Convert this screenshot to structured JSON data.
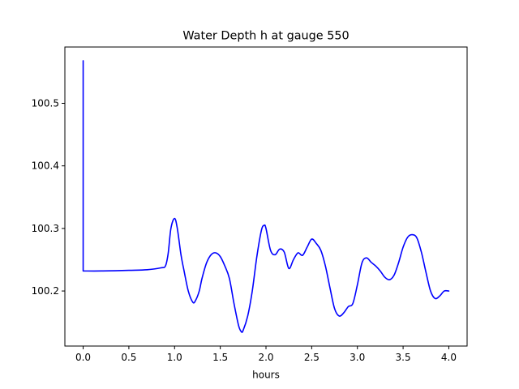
{
  "chart_data": {
    "type": "line",
    "title": "Water Depth h at gauge 550",
    "xlabel": "hours",
    "ylabel": "",
    "xlim": [
      -0.2,
      4.2
    ],
    "ylim": [
      100.112,
      100.59
    ],
    "xticks": [
      0.0,
      0.5,
      1.0,
      1.5,
      2.0,
      2.5,
      3.0,
      3.5,
      4.0
    ],
    "xtick_labels": [
      "0.0",
      "0.5",
      "1.0",
      "1.5",
      "2.0",
      "2.5",
      "3.0",
      "3.5",
      "4.0"
    ],
    "yticks": [
      100.2,
      100.3,
      100.4,
      100.5
    ],
    "ytick_labels": [
      "100.2",
      "100.3",
      "100.4",
      "100.5"
    ],
    "grid": false,
    "series": [
      {
        "color": "#0000ff",
        "x": [
          0.0,
          0.0,
          0.005,
          0.2,
          0.5,
          0.7,
          0.85,
          0.9,
          0.93,
          0.96,
          1.0,
          1.03,
          1.07,
          1.1,
          1.15,
          1.2,
          1.23,
          1.27,
          1.3,
          1.35,
          1.4,
          1.45,
          1.5,
          1.55,
          1.6,
          1.65,
          1.7,
          1.73,
          1.75,
          1.8,
          1.85,
          1.9,
          1.95,
          1.98,
          2.0,
          2.05,
          2.1,
          2.15,
          2.2,
          2.25,
          2.3,
          2.35,
          2.4,
          2.45,
          2.5,
          2.55,
          2.6,
          2.65,
          2.7,
          2.75,
          2.8,
          2.85,
          2.9,
          2.95,
          3.0,
          3.05,
          3.1,
          3.15,
          3.2,
          3.25,
          3.3,
          3.35,
          3.4,
          3.45,
          3.5,
          3.55,
          3.6,
          3.65,
          3.7,
          3.75,
          3.8,
          3.85,
          3.9,
          3.95,
          4.0
        ],
        "y": [
          100.568,
          100.232,
          100.232,
          100.232,
          100.233,
          100.234,
          100.237,
          100.24,
          100.26,
          100.3,
          100.316,
          100.3,
          100.258,
          100.235,
          100.2,
          100.182,
          100.185,
          100.2,
          100.22,
          100.245,
          100.258,
          100.261,
          100.255,
          100.24,
          100.22,
          100.18,
          100.145,
          100.135,
          100.137,
          100.16,
          100.2,
          100.255,
          100.297,
          100.305,
          100.3,
          100.265,
          100.258,
          100.267,
          100.262,
          100.236,
          100.25,
          100.261,
          100.257,
          100.27,
          100.283,
          100.276,
          100.265,
          100.24,
          100.205,
          100.172,
          100.16,
          100.165,
          100.175,
          100.18,
          100.21,
          100.245,
          100.253,
          100.246,
          100.24,
          100.232,
          100.222,
          100.218,
          100.225,
          100.245,
          100.27,
          100.286,
          100.29,
          100.285,
          100.262,
          100.23,
          100.2,
          100.188,
          100.192,
          100.2,
          100.2
        ]
      }
    ]
  }
}
